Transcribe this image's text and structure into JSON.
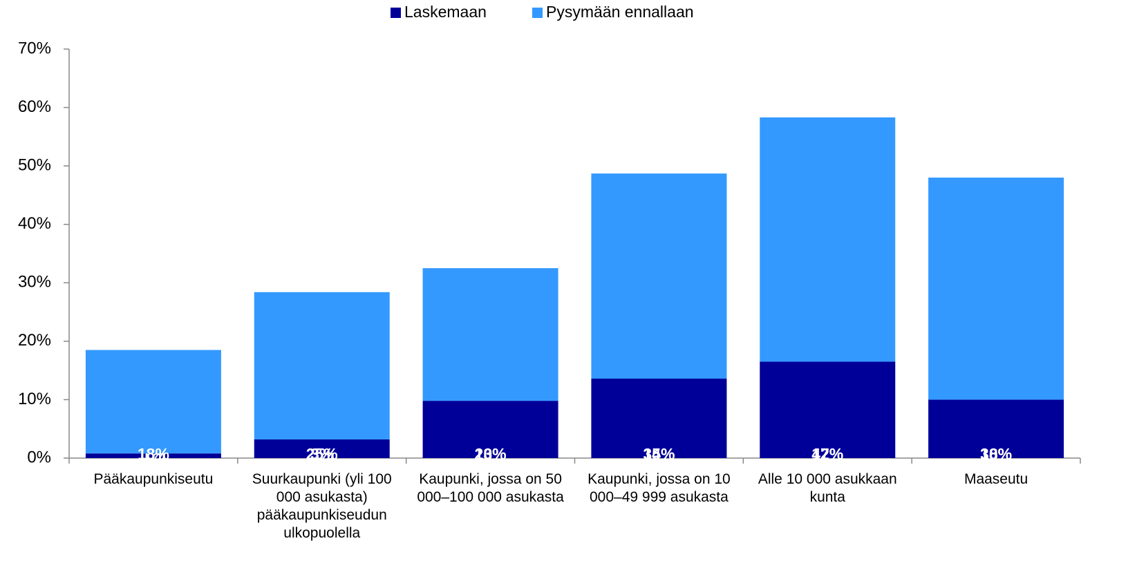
{
  "chart_data": {
    "type": "stacked_bar",
    "categories": [
      "Pääkaupunkiseutu",
      "Suurkaupunki (yli 100 000 asukasta) pääkaupunkiseudun ulkopuolella",
      "Kaupunki, jossa on 50 000–100 000 asukasta",
      "Kaupunki, jossa on 10 000–49 999 asukasta",
      "Alle 10 000 asukkaan kunta",
      "Maaseutu"
    ],
    "series": [
      {
        "name": "Laskemaan",
        "color": "#000099",
        "values": [
          0.8,
          3.2,
          9.8,
          13.6,
          16.5,
          10.0
        ],
        "value_labels": [
          "1%",
          "3%",
          "10%",
          "14%",
          "17%",
          "10%"
        ]
      },
      {
        "name": "Pysymään ennallaan",
        "color": "#3399ff",
        "values": [
          17.7,
          25.2,
          22.7,
          35.1,
          41.8,
          38.0
        ],
        "value_labels": [
          "18%",
          "25%",
          "23%",
          "35%",
          "42%",
          "38%"
        ]
      }
    ],
    "ylim": [
      0,
      70
    ],
    "yticks": [
      {
        "value": 0,
        "label": "0%"
      },
      {
        "value": 10,
        "label": "10%"
      },
      {
        "value": 20,
        "label": "20%"
      },
      {
        "value": 30,
        "label": "30%"
      },
      {
        "value": 40,
        "label": "40%"
      },
      {
        "value": 50,
        "label": "50%"
      },
      {
        "value": 60,
        "label": "60%"
      },
      {
        "value": 70,
        "label": "70%"
      }
    ],
    "legend": "top"
  }
}
